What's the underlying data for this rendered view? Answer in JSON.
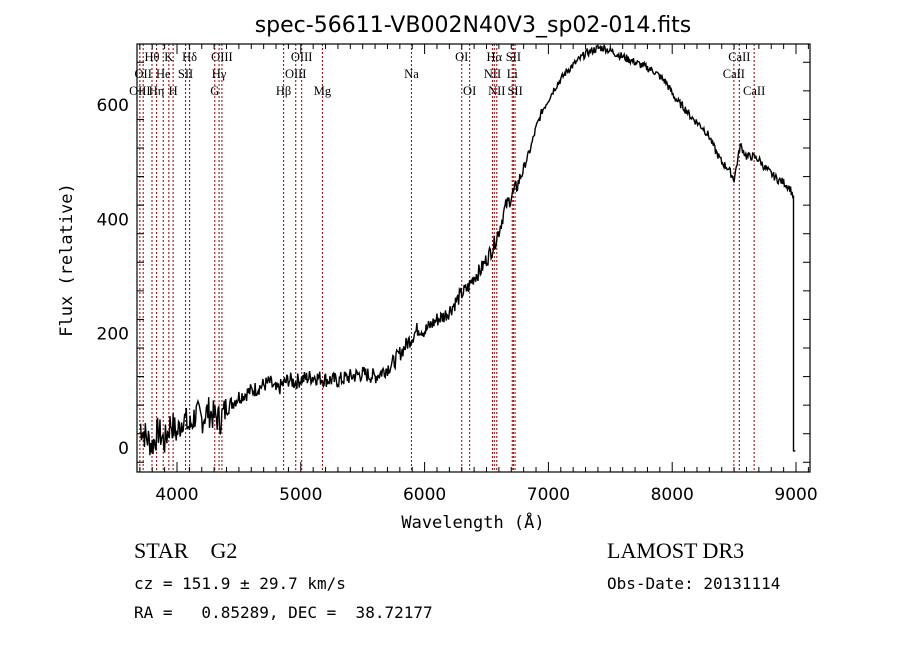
{
  "chart_data": {
    "type": "line",
    "title": "spec-56611-VB002N40V3_sp02-014.fits",
    "xlabel": "Wavelength (Å)",
    "ylabel": "Flux (relative)",
    "xlim": [
      3677,
      9113
    ],
    "ylim": [
      -42,
      707
    ],
    "xticks": [
      4000,
      5000,
      6000,
      7000,
      8000,
      9000
    ],
    "xtick_labels": [
      "4000",
      "5000",
      "6000",
      "7000",
      "8000",
      "9000"
    ],
    "yticks": [
      0,
      200,
      400,
      600
    ],
    "ytick_labels": [
      "0",
      "200",
      "400",
      "600"
    ],
    "grid": false,
    "series": [
      {
        "name": "spectrum",
        "color": "#000000",
        "x": [
          3700,
          3750,
          3800,
          3850,
          3900,
          3950,
          4000,
          4050,
          4100,
          4150,
          4200,
          4250,
          4300,
          4350,
          4400,
          4450,
          4500,
          4550,
          4600,
          4650,
          4700,
          4750,
          4800,
          4850,
          4900,
          4950,
          5000,
          5100,
          5200,
          5300,
          5400,
          5500,
          5600,
          5700,
          5750,
          5800,
          5850,
          5900,
          5950,
          6000,
          6050,
          6100,
          6150,
          6200,
          6250,
          6300,
          6350,
          6400,
          6450,
          6500,
          6550,
          6600,
          6650,
          6700,
          6750,
          6800,
          6850,
          6900,
          6950,
          7000,
          7050,
          7100,
          7150,
          7200,
          7250,
          7300,
          7350,
          7400,
          7450,
          7500,
          7550,
          7600,
          7650,
          7700,
          7750,
          7800,
          7850,
          7900,
          7950,
          8000,
          8050,
          8100,
          8150,
          8200,
          8250,
          8300,
          8350,
          8400,
          8450,
          8500,
          8550,
          8600,
          8650,
          8700,
          8750,
          8800,
          8850,
          8900,
          8950,
          8980
        ],
        "y": [
          40,
          20,
          5,
          30,
          10,
          45,
          25,
          55,
          35,
          60,
          50,
          65,
          55,
          50,
          70,
          80,
          90,
          95,
          100,
          105,
          110,
          115,
          100,
          110,
          120,
          115,
          120,
          125,
          120,
          118,
          125,
          130,
          125,
          140,
          150,
          165,
          180,
          195,
          210,
          205,
          215,
          225,
          230,
          240,
          255,
          270,
          280,
          300,
          310,
          330,
          350,
          380,
          420,
          440,
          460,
          490,
          520,
          560,
          590,
          610,
          630,
          645,
          660,
          670,
          680,
          690,
          695,
          700,
          700,
          695,
          690,
          685,
          680,
          675,
          670,
          665,
          660,
          650,
          640,
          620,
          605,
          595,
          580,
          570,
          560,
          545,
          520,
          500,
          490,
          470,
          530,
          510,
          510,
          505,
          490,
          480,
          470,
          465,
          455,
          440
        ]
      }
    ],
    "spectral_lines": [
      {
        "label": "Hθ",
        "wavelength": 3798,
        "row": 1
      },
      {
        "label": "OII",
        "wavelength": 3727,
        "row": 2
      },
      {
        "label": "OIII",
        "wavelength": 3700,
        "row": 3
      },
      {
        "label": "He",
        "wavelength": 3889,
        "row": 2
      },
      {
        "label": "Hη",
        "wavelength": 3835,
        "row": 3
      },
      {
        "label": "K",
        "wavelength": 3934,
        "row": 1
      },
      {
        "label": "SII",
        "wavelength": 4069,
        "row": 2
      },
      {
        "label": "H",
        "wavelength": 3969,
        "row": 3
      },
      {
        "label": "Hδ",
        "wavelength": 4102,
        "row": 1
      },
      {
        "label": "OIII",
        "wavelength": 4363,
        "row": 1
      },
      {
        "label": "Hγ",
        "wavelength": 4340,
        "row": 2
      },
      {
        "label": "G",
        "wavelength": 4305,
        "row": 3
      },
      {
        "label": "Hβ",
        "wavelength": 4861,
        "row": 3
      },
      {
        "label": "OIII",
        "wavelength": 5007,
        "row": 1
      },
      {
        "label": "OIII",
        "wavelength": 4959,
        "row": 2
      },
      {
        "label": "Mg",
        "wavelength": 5175,
        "row": 3
      },
      {
        "label": "Na",
        "wavelength": 5894,
        "row": 2
      },
      {
        "label": "OI",
        "wavelength": 6300,
        "row": 1
      },
      {
        "label": "OI",
        "wavelength": 6364,
        "row": 3
      },
      {
        "label": "Hα",
        "wavelength": 6563,
        "row": 1
      },
      {
        "label": "NII",
        "wavelength": 6548,
        "row": 2
      },
      {
        "label": "NII",
        "wavelength": 6583,
        "row": 3
      },
      {
        "label": "SII",
        "wavelength": 6717,
        "row": 1
      },
      {
        "label": "Li",
        "wavelength": 6708,
        "row": 2
      },
      {
        "label": "SII",
        "wavelength": 6731,
        "row": 3
      },
      {
        "label": "CaII",
        "wavelength": 8542,
        "row": 1
      },
      {
        "label": "CaII",
        "wavelength": 8498,
        "row": 2
      },
      {
        "label": "CaII",
        "wavelength": 8662,
        "row": 3
      }
    ],
    "line_marker_color": "#a01010"
  },
  "info": {
    "class": "STAR",
    "subclass": "G2",
    "cz": "cz = 151.9 ± 29.7 km/s",
    "coords": "RA =   0.85289, DEC =  38.72177",
    "survey": "LAMOST DR3",
    "obs_date": "Obs-Date: 20131114"
  }
}
